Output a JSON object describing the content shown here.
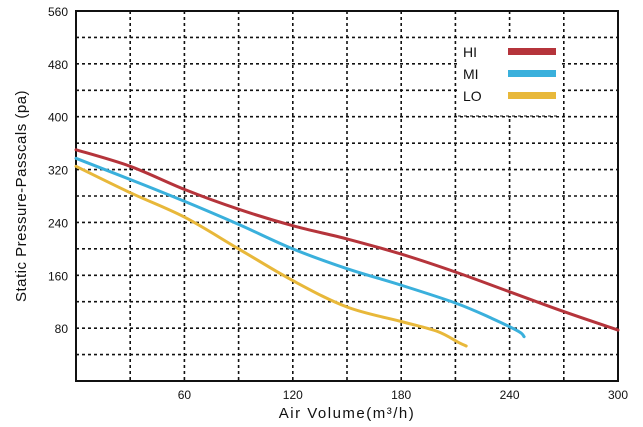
{
  "chart_data": {
    "type": "line",
    "title": "",
    "xlabel": "Air Volume(m³/h)",
    "ylabel": "Static Pressure-Passcals (pa)",
    "xlim": [
      0,
      300
    ],
    "ylim": [
      0,
      560
    ],
    "x_ticks": [
      60,
      120,
      180,
      240,
      300
    ],
    "y_ticks": [
      80,
      160,
      240,
      320,
      400,
      480,
      560
    ],
    "grid": "dashed",
    "legend_position": "top-right",
    "series": [
      {
        "name": "HI",
        "color": "#b5343b",
        "points": [
          [
            0,
            350
          ],
          [
            30,
            325
          ],
          [
            60,
            290
          ],
          [
            90,
            260
          ],
          [
            120,
            235
          ],
          [
            150,
            215
          ],
          [
            180,
            192
          ],
          [
            210,
            165
          ],
          [
            240,
            135
          ],
          [
            270,
            105
          ],
          [
            300,
            77
          ]
        ]
      },
      {
        "name": "MI",
        "color": "#3ab0dc",
        "points": [
          [
            0,
            337
          ],
          [
            30,
            305
          ],
          [
            60,
            272
          ],
          [
            90,
            237
          ],
          [
            120,
            200
          ],
          [
            150,
            170
          ],
          [
            180,
            145
          ],
          [
            210,
            118
          ],
          [
            230,
            95
          ],
          [
            245,
            75
          ],
          [
            248,
            67
          ]
        ]
      },
      {
        "name": "LO",
        "color": "#e8b83a",
        "points": [
          [
            0,
            325
          ],
          [
            30,
            285
          ],
          [
            60,
            248
          ],
          [
            90,
            200
          ],
          [
            120,
            152
          ],
          [
            150,
            112
          ],
          [
            180,
            90
          ],
          [
            200,
            75
          ],
          [
            212,
            58
          ],
          [
            216,
            53
          ]
        ]
      }
    ]
  }
}
